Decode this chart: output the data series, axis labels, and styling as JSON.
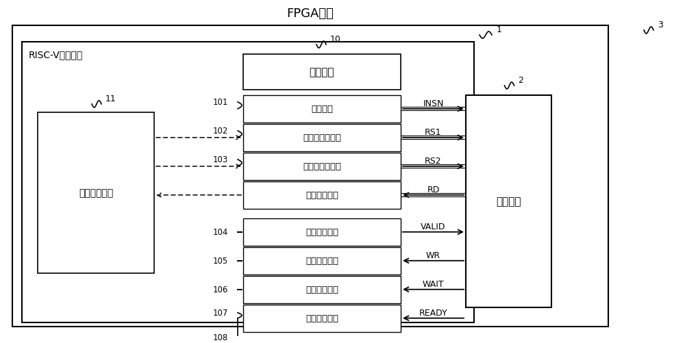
{
  "bg_color": "#ffffff",
  "fpga_title": "FPGA芯片",
  "risc_label": "RISC-V处理器核",
  "reg_label": "通用寄存器组",
  "interface_module_label": "接口模块",
  "ext_label": "扩展模块",
  "iface_labels": [
    "指令接口",
    "第一操作数接口",
    "第二操作数接口",
    "数据返回接口",
    "操作请求接口",
    "写回请求接口",
    "等待请求接口",
    "运算完成接口"
  ],
  "iface_nums": [
    "101",
    "102",
    "103",
    "",
    "104",
    "105",
    "106",
    "107"
  ],
  "signal_labels": [
    "INSN",
    "RS1",
    "RS2",
    "RD",
    "VALID",
    "WR",
    "WAIT",
    "READY"
  ],
  "signal_dirs": [
    "right",
    "right",
    "right",
    "left",
    "right",
    "left",
    "left",
    "left"
  ],
  "label_1": "1",
  "label_2": "2",
  "label_3": "3",
  "label_10": "10",
  "label_11": "11",
  "label_108": "108"
}
